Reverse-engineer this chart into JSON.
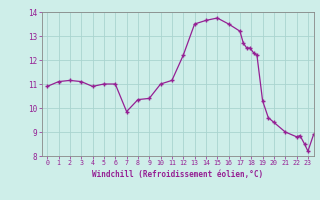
{
  "hours": [
    0,
    1,
    2,
    3,
    4,
    5,
    6,
    7,
    8,
    9,
    10,
    11,
    12,
    13,
    14,
    15,
    16,
    17,
    17.3,
    17.6,
    17.9,
    18.2,
    18.5,
    19,
    19.5,
    20,
    21,
    22,
    22.3,
    22.7,
    23,
    23.5
  ],
  "values": [
    10.9,
    11.1,
    11.15,
    11.1,
    10.9,
    11.0,
    11.0,
    9.85,
    10.35,
    10.4,
    11.0,
    11.15,
    12.2,
    13.5,
    13.65,
    13.75,
    13.5,
    13.2,
    12.7,
    12.5,
    12.5,
    12.3,
    12.2,
    10.3,
    9.6,
    9.4,
    9.0,
    8.8,
    8.85,
    8.5,
    8.2,
    8.9
  ],
  "line_color": "#952094",
  "marker_color": "#952094",
  "bg_color": "#ceeee9",
  "grid_color": "#aad4cf",
  "axis_color": "#888888",
  "tick_color": "#952094",
  "xlabel": "Windchill (Refroidissement éolien,°C)",
  "xlabel_color": "#952094",
  "ylim": [
    8,
    14
  ],
  "xlim": [
    -0.5,
    23.5
  ],
  "yticks": [
    8,
    9,
    10,
    11,
    12,
    13,
    14
  ],
  "xticks": [
    0,
    1,
    2,
    3,
    4,
    5,
    6,
    7,
    8,
    9,
    10,
    11,
    12,
    13,
    14,
    15,
    16,
    17,
    18,
    19,
    20,
    21,
    22,
    23
  ]
}
